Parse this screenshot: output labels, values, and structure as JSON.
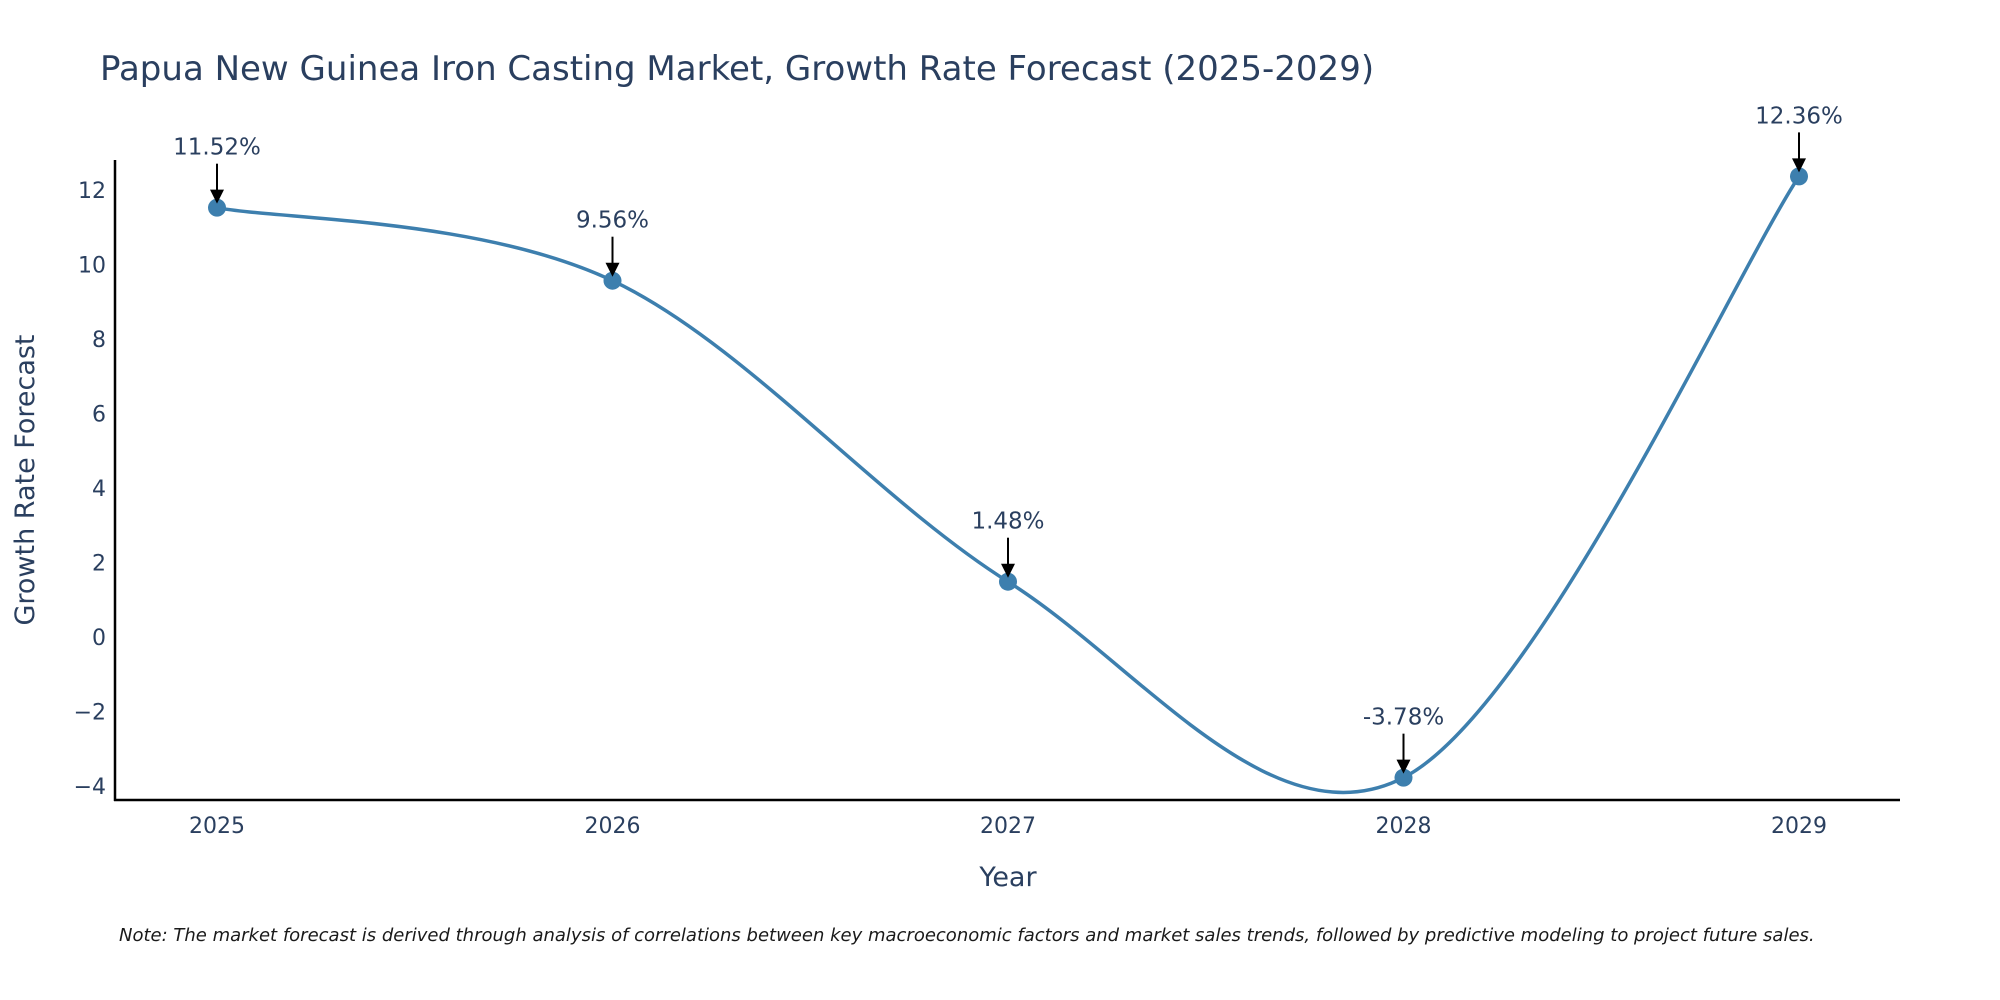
{
  "chart_data": {
    "type": "line",
    "title": "Papua New Guinea Iron Casting Market, Growth Rate Forecast (2025-2029)",
    "xlabel": "Year",
    "ylabel": "Growth Rate Forecast",
    "categories": [
      "2025",
      "2026",
      "2027",
      "2028",
      "2029"
    ],
    "series": [
      {
        "name": "Growth Rate Forecast",
        "values": [
          11.52,
          9.56,
          1.48,
          -3.78,
          12.36
        ],
        "labels": [
          "11.52%",
          "9.56%",
          "1.48%",
          "-3.78%",
          "12.36%"
        ],
        "color": "#3d7fae"
      }
    ],
    "y_ticks": [
      -4,
      -2,
      0,
      2,
      4,
      6,
      8,
      10,
      12
    ],
    "y_tick_labels": [
      "−4",
      "−2",
      "0",
      "2",
      "4",
      "6",
      "8",
      "10",
      "12"
    ],
    "ylim": [
      -4.38,
      12.8
    ],
    "grid": false,
    "line_shape": "spline",
    "note": "Note: The market forecast is derived through analysis of correlations between key macroeconomic factors and market sales trends, followed by predictive modeling to project future sales."
  }
}
